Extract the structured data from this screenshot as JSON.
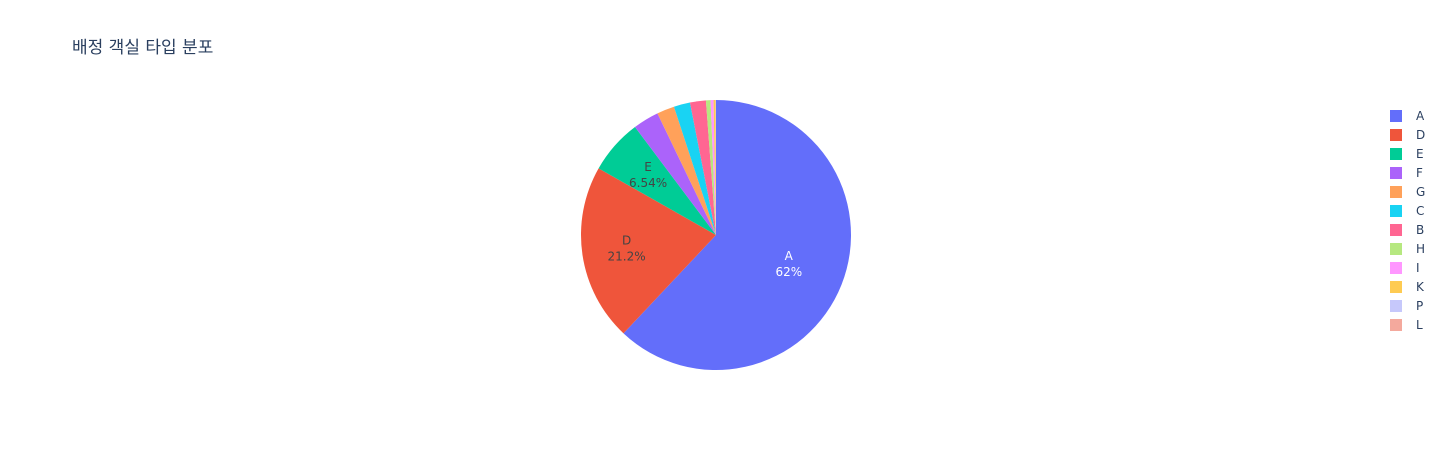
{
  "chart_data": {
    "type": "pie",
    "title": "배정 객실 타입 분포",
    "slices": [
      {
        "label": "A",
        "value": 62.0,
        "text_pct": "62%",
        "color": "#636efa",
        "show_text": true,
        "text_color": "#ffffff"
      },
      {
        "label": "D",
        "value": 21.2,
        "text_pct": "21.2%",
        "color": "#EF553B",
        "show_text": true,
        "text_color": "#444444"
      },
      {
        "label": "E",
        "value": 6.54,
        "text_pct": "6.54%",
        "color": "#00cc96",
        "show_text": true,
        "text_color": "#444444"
      },
      {
        "label": "F",
        "value": 3.1,
        "text_pct": "",
        "color": "#ab63fa",
        "show_text": false,
        "text_color": "#444444"
      },
      {
        "label": "G",
        "value": 2.1,
        "text_pct": "",
        "color": "#FFA15A",
        "show_text": false,
        "text_color": "#444444"
      },
      {
        "label": "C",
        "value": 1.95,
        "text_pct": "",
        "color": "#19d3f3",
        "show_text": false,
        "text_color": "#444444"
      },
      {
        "label": "B",
        "value": 1.9,
        "text_pct": "",
        "color": "#FF6692",
        "show_text": false,
        "text_color": "#444444"
      },
      {
        "label": "H",
        "value": 0.55,
        "text_pct": "",
        "color": "#B6E880",
        "show_text": false,
        "text_color": "#444444"
      },
      {
        "label": "I",
        "value": 0.35,
        "text_pct": "",
        "color": "#FF97FF",
        "show_text": false,
        "text_color": "#444444"
      },
      {
        "label": "K",
        "value": 0.25,
        "text_pct": "",
        "color": "#FECB52",
        "show_text": false,
        "text_color": "#444444"
      },
      {
        "label": "P",
        "value": 0.03,
        "text_pct": "",
        "color": "#c6c8fb",
        "show_text": false,
        "text_color": "#444444"
      },
      {
        "label": "L",
        "value": 0.01,
        "text_pct": "",
        "color": "#f4a99d",
        "show_text": false,
        "text_color": "#444444"
      }
    ],
    "legend_position": "right"
  }
}
